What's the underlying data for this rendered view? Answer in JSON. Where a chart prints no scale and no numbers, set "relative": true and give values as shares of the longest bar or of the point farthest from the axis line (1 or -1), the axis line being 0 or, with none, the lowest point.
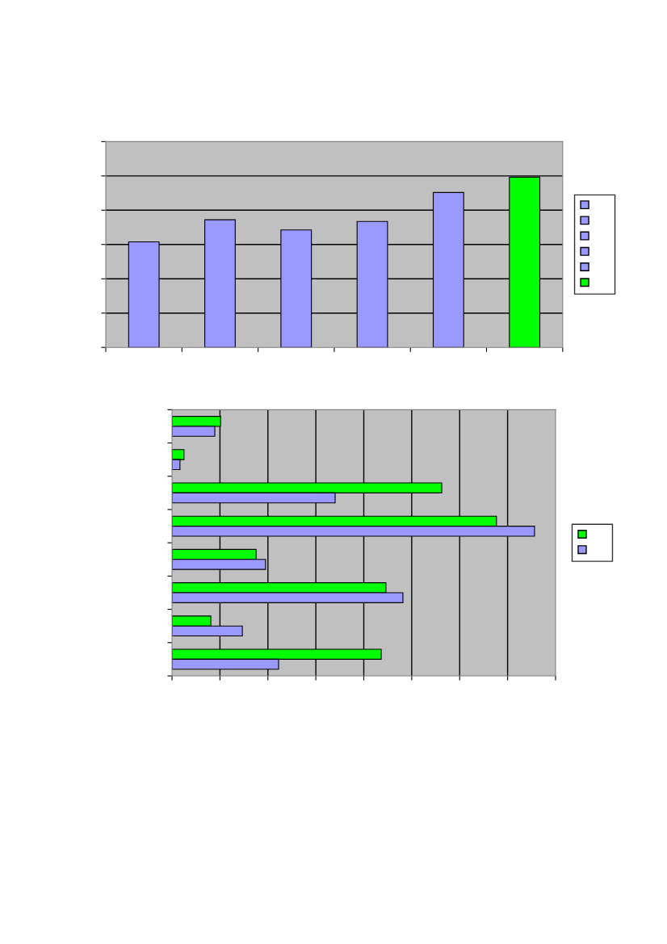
{
  "chart_data": [
    {
      "type": "bar",
      "relative": true,
      "categories": [
        null,
        null,
        null,
        null,
        null,
        null
      ],
      "values": [
        0.62,
        0.75,
        0.69,
        0.74,
        0.91,
        1.0
      ],
      "colors": [
        "#9999ff",
        "#9999ff",
        "#9999ff",
        "#9999ff",
        "#9999ff",
        "#00ff00"
      ],
      "grid": "y"
    },
    {
      "type": "bar",
      "relative": true,
      "orientation": "horizontal",
      "categories": [
        null,
        null,
        null,
        null,
        null,
        null,
        null,
        null
      ],
      "series": [
        {
          "color": "#00ff00",
          "values": [
            0.134,
            0.033,
            0.744,
            0.895,
            0.232,
            0.59,
            0.107,
            0.577
          ]
        },
        {
          "color": "#9999ff",
          "values": [
            0.118,
            0.022,
            0.45,
            1.0,
            0.258,
            0.637,
            0.194,
            0.294
          ]
        }
      ],
      "grid": "x"
    }
  ]
}
